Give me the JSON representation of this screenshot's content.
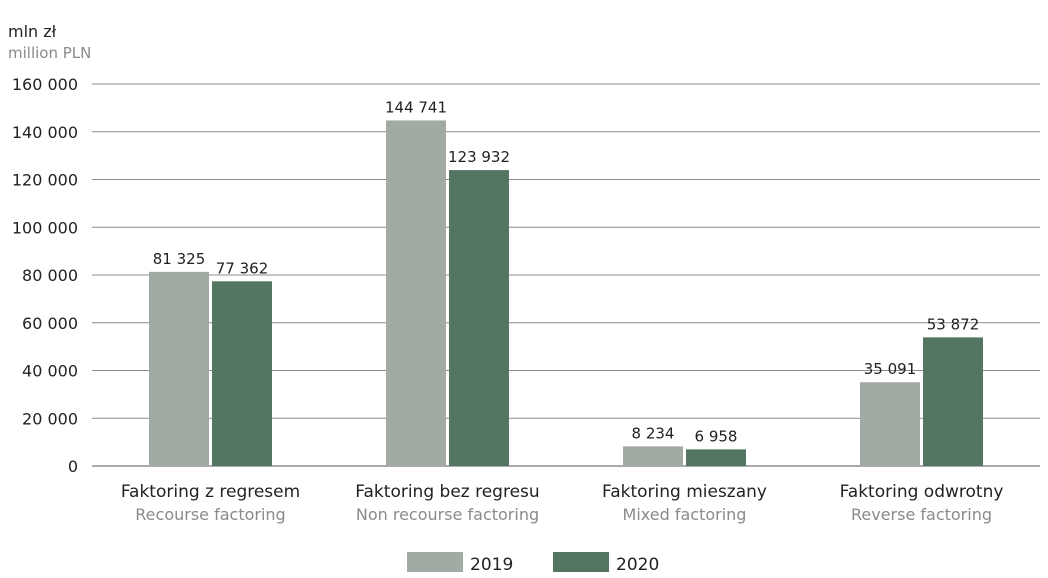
{
  "chart_data": {
    "type": "bar",
    "ylabel": "mln zł",
    "ylabel_secondary": "million PLN",
    "ylim": [
      0,
      160000
    ],
    "yticks": [
      0,
      20000,
      40000,
      60000,
      80000,
      100000,
      120000,
      140000,
      160000
    ],
    "ytick_labels": [
      "0",
      "20 000",
      "40 000",
      "60 000",
      "80 000",
      "100 000",
      "120 000",
      "140 000",
      "160 000"
    ],
    "grid": true,
    "legend_position": "bottom",
    "categories": [
      {
        "label": "Faktoring z regresem",
        "sublabel": "Recourse  factoring"
      },
      {
        "label": "Faktoring bez regresu",
        "sublabel": "Non recourse  factoring"
      },
      {
        "label": "Faktoring mieszany",
        "sublabel": "Mixed factoring"
      },
      {
        "label": "Faktoring odwrotny",
        "sublabel": "Reverse factoring"
      }
    ],
    "series": [
      {
        "name": "2019",
        "color": "#a1aba3",
        "values": [
          81325,
          144741,
          8234,
          35091
        ],
        "data_labels": [
          "81 325",
          "144 741",
          "8 234",
          "35 091"
        ]
      },
      {
        "name": "2020",
        "color": "#537561",
        "values": [
          77362,
          123932,
          6958,
          53872
        ],
        "data_labels": [
          "77 362",
          "123 932",
          "6 958",
          "53 872"
        ]
      }
    ]
  }
}
